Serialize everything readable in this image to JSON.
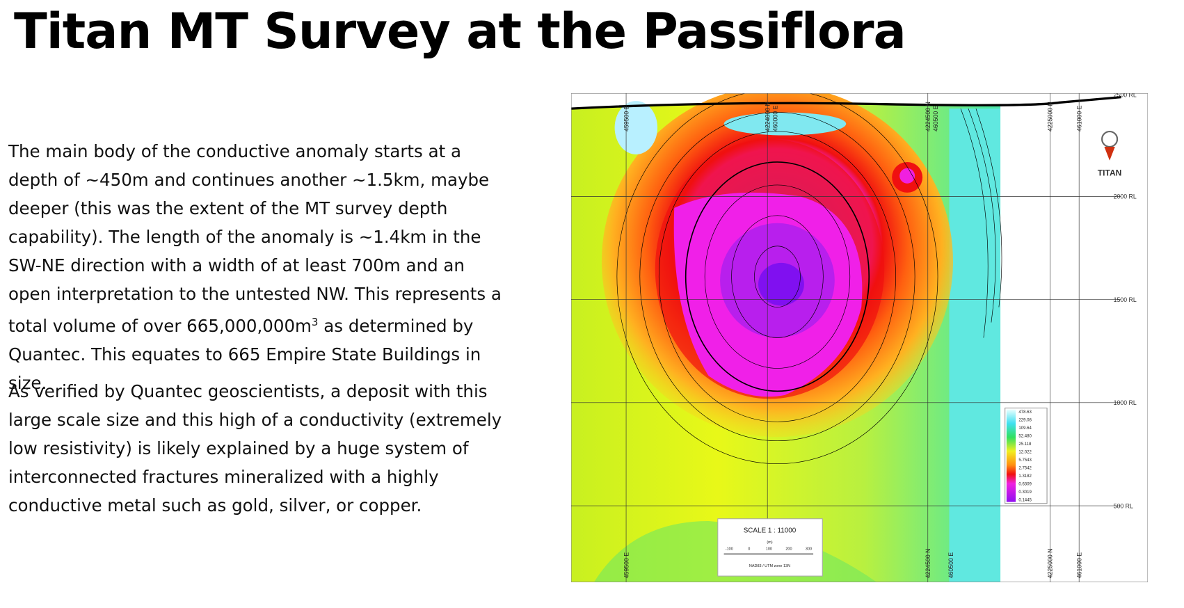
{
  "title": "Titan MT Survey at the Passiflora",
  "body": {
    "paragraph1": {
      "before": "The main body of the conductive anomaly starts at a depth of ~450m and continues another ~1.5km, maybe deeper (this was the extent of the MT survey depth capability). The length of the anomaly is ~1.4km in the SW-NE direction with a width of at least 700m and an open interpretation to the untested NW.  This represents a total volume of over 665,000,000m",
      "superscript": "3",
      "after": " as determined by Quantec. This equates to 665 Empire State Buildings in size."
    },
    "paragraph2": "As verified by Quantec geoscientists, a deposit with this large scale size and this high of a conductivity (extremely low resistivity) is likely explained by a huge system of interconnected fractures mineralized with a highly conductive metal such as gold, silver, or copper."
  },
  "map": {
    "logo": "TITAN",
    "rl_labels": [
      "2500 RL",
      "2000 RL",
      "1500 RL",
      "1000 RL",
      "500 RL"
    ],
    "top_labels": [
      "459500 E",
      "4224000 N",
      "460000 E",
      "4224500 N",
      "460500 E",
      "4225000 N",
      "461000 E"
    ],
    "bottom_labels": [
      "459500 E",
      "4224500 N",
      "460500 E",
      "4225000 N",
      "461000 E"
    ],
    "legend": [
      "478.63",
      "229.08",
      "109.64",
      "52.480",
      "25.118",
      "12.022",
      "5.7543",
      "2.7542",
      "1.3182",
      "0.6309",
      "0.3019",
      "0.1445"
    ],
    "scale": {
      "title": "SCALE  1 : 11000",
      "unit": "(m)",
      "ticks": [
        "-100",
        "0",
        "100",
        "200",
        "300"
      ],
      "datum": "NAD83 / UTM zone 13N"
    }
  }
}
